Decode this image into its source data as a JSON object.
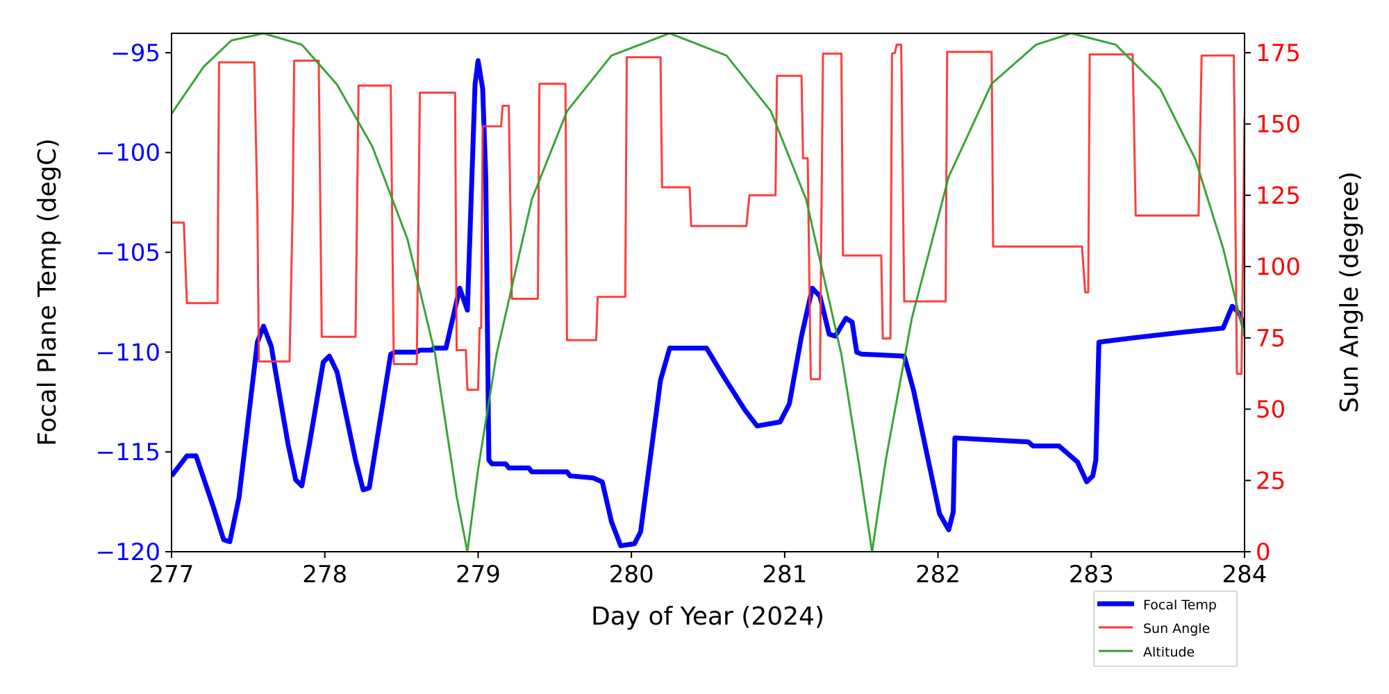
{
  "chart_data": {
    "type": "line",
    "title": "",
    "xlabel": "Day of Year (2024)",
    "ylabel": "Focal Plane Temp (degC)",
    "ylabel_right": "Sun Angle (degree)",
    "xlim": [
      277,
      284
    ],
    "ylim": [
      -120,
      -94.03
    ],
    "ylim_right": [
      0,
      181.8
    ],
    "x_ticks": [
      277,
      278,
      279,
      280,
      281,
      282,
      283,
      284
    ],
    "y_ticks": [
      -120,
      -115,
      -110,
      -105,
      -100,
      -95
    ],
    "y_tick_labels": [
      "−120",
      "−115",
      "−110",
      "−105",
      "−100",
      "−95"
    ],
    "y_ticks_right": [
      0,
      25,
      50,
      75,
      100,
      125,
      150,
      175
    ],
    "grid": false,
    "legend": {
      "placement": "below-right",
      "entries": [
        "Focal Temp",
        "Sun Angle",
        "Altitude"
      ]
    },
    "colors": {
      "left_axis": "#0000ff",
      "right_axis": "#ff0000",
      "focal": "#0000ff",
      "sun": "#ff3333",
      "altitude": "#2ca02c"
    },
    "series": [
      {
        "name": "Focal Temp",
        "axis": "left",
        "color": "#0000ff",
        "points": [
          [
            277.0,
            -116.2
          ],
          [
            277.1,
            -115.2
          ],
          [
            277.16,
            -115.2
          ],
          [
            277.27,
            -117.7
          ],
          [
            277.34,
            -119.4
          ],
          [
            277.38,
            -119.5
          ],
          [
            277.44,
            -117.3
          ],
          [
            277.56,
            -109.5
          ],
          [
            277.6,
            -108.7
          ],
          [
            277.65,
            -109.7
          ],
          [
            277.76,
            -114.6
          ],
          [
            277.81,
            -116.4
          ],
          [
            277.85,
            -116.7
          ],
          [
            277.9,
            -114.6
          ],
          [
            277.99,
            -110.5
          ],
          [
            278.03,
            -110.2
          ],
          [
            278.08,
            -111
          ],
          [
            278.2,
            -115.4
          ],
          [
            278.25,
            -116.9
          ],
          [
            278.29,
            -116.8
          ],
          [
            278.43,
            -110.1
          ],
          [
            278.46,
            -110
          ],
          [
            278.6,
            -110
          ],
          [
            278.62,
            -109.9
          ],
          [
            278.7,
            -109.9
          ],
          [
            278.71,
            -109.8
          ],
          [
            278.79,
            -109.8
          ],
          [
            278.88,
            -106.8
          ],
          [
            278.93,
            -107.9
          ],
          [
            278.98,
            -96.6
          ],
          [
            279.0,
            -95.4
          ],
          [
            279.03,
            -96.8
          ],
          [
            279.05,
            -101.3
          ],
          [
            279.07,
            -115.4
          ],
          [
            279.09,
            -115.6
          ],
          [
            279.18,
            -115.6
          ],
          [
            279.2,
            -115.8
          ],
          [
            279.33,
            -115.8
          ],
          [
            279.35,
            -116
          ],
          [
            279.58,
            -116
          ],
          [
            279.6,
            -116.2
          ],
          [
            279.75,
            -116.3
          ],
          [
            279.81,
            -116.5
          ],
          [
            279.87,
            -118.5
          ],
          [
            279.93,
            -119.7
          ],
          [
            280.02,
            -119.6
          ],
          [
            280.06,
            -119
          ],
          [
            280.19,
            -111.4
          ],
          [
            280.25,
            -109.8
          ],
          [
            280.49,
            -109.8
          ],
          [
            280.6,
            -111.2
          ],
          [
            280.74,
            -112.9
          ],
          [
            280.82,
            -113.7
          ],
          [
            280.97,
            -113.5
          ],
          [
            281.03,
            -112.6
          ],
          [
            281.11,
            -109.2
          ],
          [
            281.18,
            -106.8
          ],
          [
            281.23,
            -107.2
          ],
          [
            281.29,
            -109.1
          ],
          [
            281.33,
            -109.2
          ],
          [
            281.4,
            -108.3
          ],
          [
            281.44,
            -108.5
          ],
          [
            281.47,
            -110
          ],
          [
            281.5,
            -110.1
          ],
          [
            281.78,
            -110.2
          ],
          [
            281.84,
            -111.9
          ],
          [
            281.95,
            -115.9
          ],
          [
            282.01,
            -118.1
          ],
          [
            282.07,
            -118.9
          ],
          [
            282.1,
            -118
          ],
          [
            282.11,
            -114.3
          ],
          [
            282.59,
            -114.5
          ],
          [
            282.62,
            -114.7
          ],
          [
            282.79,
            -114.7
          ],
          [
            282.91,
            -115.5
          ],
          [
            282.97,
            -116.5
          ],
          [
            283.01,
            -116.2
          ],
          [
            283.03,
            -115.4
          ],
          [
            283.05,
            -109.5
          ],
          [
            283.26,
            -109.3
          ],
          [
            283.6,
            -109
          ],
          [
            283.86,
            -108.8
          ],
          [
            283.92,
            -107.7
          ],
          [
            283.97,
            -108.1
          ],
          [
            284.0,
            -108.8
          ]
        ]
      },
      {
        "name": "Sun Angle",
        "axis": "right",
        "color": "#ff3333",
        "points": [
          [
            277,
            115.4
          ],
          [
            277.08,
            115.4
          ],
          [
            277.1,
            87.2
          ],
          [
            277.3,
            87.2
          ],
          [
            277.31,
            171.6
          ],
          [
            277.54,
            171.6
          ],
          [
            277.56,
            120
          ],
          [
            277.57,
            66.7
          ],
          [
            277.77,
            66.7
          ],
          [
            277.79,
            120
          ],
          [
            277.8,
            172.2
          ],
          [
            277.96,
            172.2
          ],
          [
            277.98,
            75.4
          ],
          [
            278.2,
            75.4
          ],
          [
            278.22,
            163.5
          ],
          [
            278.43,
            163.5
          ],
          [
            278.45,
            65.8
          ],
          [
            278.6,
            65.8
          ],
          [
            278.62,
            161
          ],
          [
            278.85,
            161
          ],
          [
            278.86,
            70.7
          ],
          [
            278.92,
            70.7
          ],
          [
            278.93,
            56.8
          ],
          [
            279.0,
            56.8
          ],
          [
            279.01,
            78.5
          ],
          [
            279.02,
            78.5
          ],
          [
            279.03,
            149.2
          ],
          [
            279.15,
            149.2
          ],
          [
            279.16,
            156.4
          ],
          [
            279.2,
            156.4
          ],
          [
            279.22,
            88.7
          ],
          [
            279.39,
            88.7
          ],
          [
            279.4,
            164.1
          ],
          [
            279.57,
            164.1
          ],
          [
            279.58,
            74.2
          ],
          [
            279.77,
            74.2
          ],
          [
            279.78,
            89.4
          ],
          [
            279.96,
            89.4
          ],
          [
            279.97,
            173.4
          ],
          [
            280.19,
            173.4
          ],
          [
            280.2,
            127.8
          ],
          [
            280.38,
            127.8
          ],
          [
            280.39,
            114.2
          ],
          [
            280.75,
            114.2
          ],
          [
            280.77,
            125
          ],
          [
            280.94,
            125
          ],
          [
            280.95,
            166.9
          ],
          [
            281.11,
            166.9
          ],
          [
            281.12,
            138
          ],
          [
            281.15,
            138
          ],
          [
            281.17,
            60.5
          ],
          [
            281.23,
            60.5
          ],
          [
            281.25,
            174.7
          ],
          [
            281.37,
            174.7
          ],
          [
            281.38,
            103.9
          ],
          [
            281.63,
            103.9
          ],
          [
            281.64,
            74.8
          ],
          [
            281.69,
            74.8
          ],
          [
            281.7,
            174.7
          ],
          [
            281.72,
            175
          ],
          [
            281.73,
            177.8
          ],
          [
            281.76,
            177.8
          ],
          [
            281.78,
            87.8
          ],
          [
            282.05,
            87.8
          ],
          [
            282.06,
            175.3
          ],
          [
            282.35,
            175.3
          ],
          [
            282.36,
            107
          ],
          [
            282.94,
            107
          ],
          [
            282.96,
            91
          ],
          [
            282.98,
            91
          ],
          [
            282.99,
            174.4
          ],
          [
            283.27,
            174.4
          ],
          [
            283.29,
            117.9
          ],
          [
            283.7,
            117.9
          ],
          [
            283.72,
            174
          ],
          [
            283.93,
            174
          ],
          [
            283.95,
            62.4
          ],
          [
            283.98,
            62.4
          ],
          [
            284.0,
            152.3
          ]
        ]
      },
      {
        "name": "Altitude",
        "axis": "right",
        "color": "#2ca02c",
        "points": [
          [
            277.0,
            153.6
          ],
          [
            277.21,
            170.1
          ],
          [
            277.39,
            179.3
          ],
          [
            277.6,
            181.8
          ],
          [
            277.85,
            177.8
          ],
          [
            278.08,
            163.8
          ],
          [
            278.31,
            142.1
          ],
          [
            278.54,
            109.5
          ],
          [
            278.72,
            69.2
          ],
          [
            278.86,
            19.5
          ],
          [
            278.93,
            0
          ],
          [
            279.0,
            28.9
          ],
          [
            279.12,
            69.2
          ],
          [
            279.35,
            123.5
          ],
          [
            279.58,
            154.5
          ],
          [
            279.87,
            174
          ],
          [
            280.25,
            181.8
          ],
          [
            280.62,
            174
          ],
          [
            280.91,
            154.5
          ],
          [
            281.14,
            123.5
          ],
          [
            281.37,
            69.2
          ],
          [
            281.49,
            28.9
          ],
          [
            281.57,
            0
          ],
          [
            281.66,
            32.3
          ],
          [
            281.83,
            81.9
          ],
          [
            282.07,
            131.5
          ],
          [
            282.35,
            164.1
          ],
          [
            282.64,
            177.8
          ],
          [
            282.87,
            181.8
          ],
          [
            283.16,
            177.8
          ],
          [
            283.45,
            162.3
          ],
          [
            283.68,
            137.5
          ],
          [
            283.86,
            106.5
          ],
          [
            284.0,
            75.4
          ]
        ]
      }
    ]
  }
}
